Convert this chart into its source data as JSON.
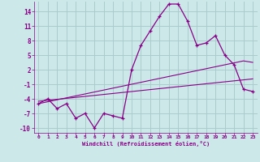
{
  "xlabel": "Windchill (Refroidissement éolien,°C)",
  "background_color": "#cce8e8",
  "grid_color": "#aacccc",
  "line_color": "#880088",
  "x_hours": [
    0,
    1,
    2,
    3,
    4,
    5,
    6,
    7,
    8,
    9,
    10,
    11,
    12,
    13,
    14,
    15,
    16,
    17,
    18,
    19,
    20,
    21,
    22,
    23
  ],
  "temp_line": [
    -5,
    -4,
    -6,
    -5,
    -8,
    -7,
    -10,
    -7,
    -7.5,
    -8,
    2,
    7,
    10,
    13,
    15.5,
    15.5,
    12,
    7,
    7.5,
    9,
    5,
    3,
    -2,
    -2.5
  ],
  "line2": [
    -4.5,
    -4.3,
    -4.1,
    -3.9,
    -3.7,
    -3.5,
    -3.3,
    -3.1,
    -2.9,
    -2.7,
    -2.5,
    -2.3,
    -2.1,
    -1.9,
    -1.7,
    -1.5,
    -1.3,
    -1.1,
    -0.9,
    -0.7,
    -0.5,
    -0.3,
    -0.1,
    0.1
  ],
  "line3": [
    -5,
    -4.6,
    -4.2,
    -3.8,
    -3.4,
    -3.0,
    -2.6,
    -2.2,
    -1.8,
    -1.4,
    -1.0,
    -0.6,
    -0.2,
    0.2,
    0.6,
    1.0,
    1.4,
    1.8,
    2.2,
    2.6,
    3.0,
    3.4,
    3.8,
    3.5
  ],
  "ylim": [
    -11,
    16
  ],
  "xlim": [
    -0.5,
    23.5
  ],
  "yticks": [
    -10,
    -7,
    -4,
    -1,
    2,
    5,
    8,
    11,
    14
  ],
  "xticks": [
    0,
    1,
    2,
    3,
    4,
    5,
    6,
    7,
    8,
    9,
    10,
    11,
    12,
    13,
    14,
    15,
    16,
    17,
    18,
    19,
    20,
    21,
    22,
    23
  ]
}
